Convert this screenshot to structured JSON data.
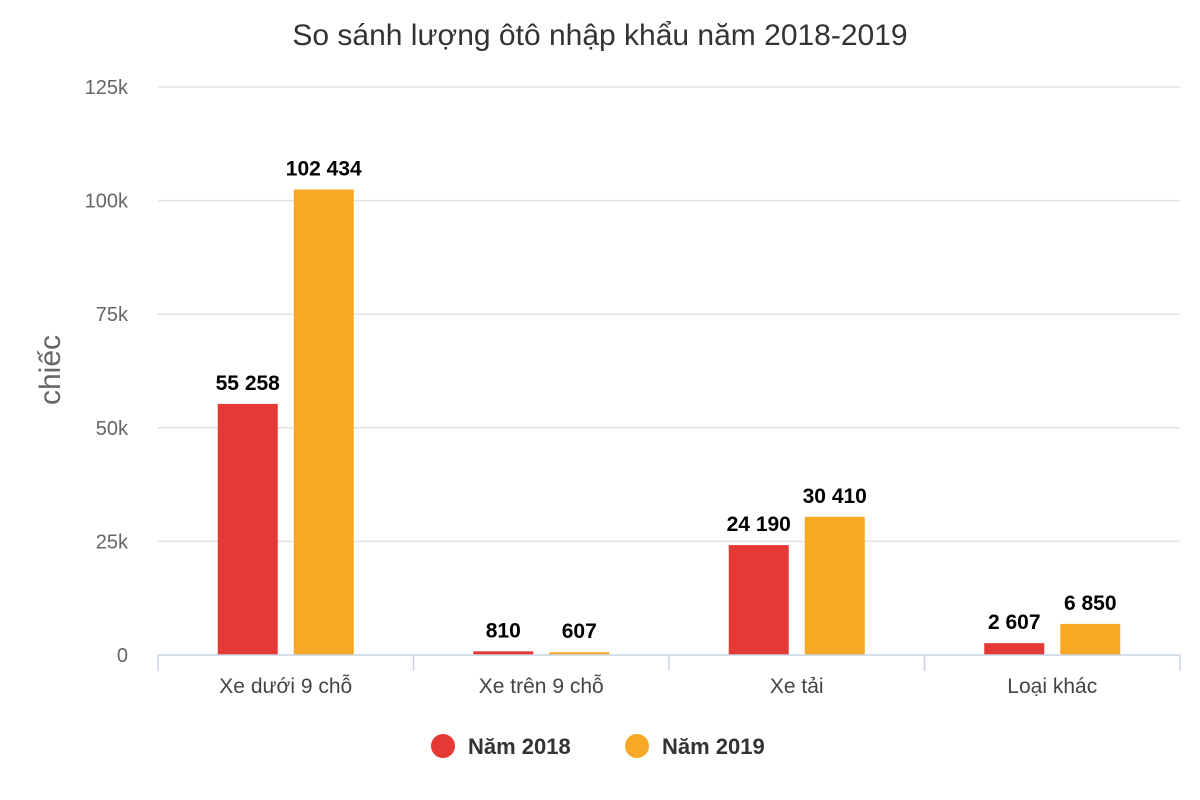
{
  "chart_data": {
    "type": "bar",
    "title": "So sánh lượng ôtô nhập khẩu năm 2018-2019",
    "xlabel": "",
    "ylabel": "chiếc",
    "categories": [
      "Xe dưới 9 chỗ",
      "Xe trên 9 chỗ",
      "Xe tải",
      "Loại khác"
    ],
    "series": [
      {
        "name": "Năm 2018",
        "color": "#e53935",
        "values": [
          55258,
          810,
          24190,
          2607
        ],
        "labels": [
          "55 258",
          "810",
          "24 190",
          "2 607"
        ]
      },
      {
        "name": "Năm 2019",
        "color": "#f9a825",
        "values": [
          102434,
          607,
          30410,
          6850
        ],
        "labels": [
          "102 434",
          "607",
          "30 410",
          "6 850"
        ]
      }
    ],
    "ylim": [
      0,
      125000
    ],
    "yticks": [
      0,
      25000,
      50000,
      75000,
      100000,
      125000
    ],
    "ytick_labels": [
      "0",
      "25k",
      "50k",
      "75k",
      "100k",
      "125k"
    ],
    "grid": true,
    "legend_position": "bottom-center"
  }
}
